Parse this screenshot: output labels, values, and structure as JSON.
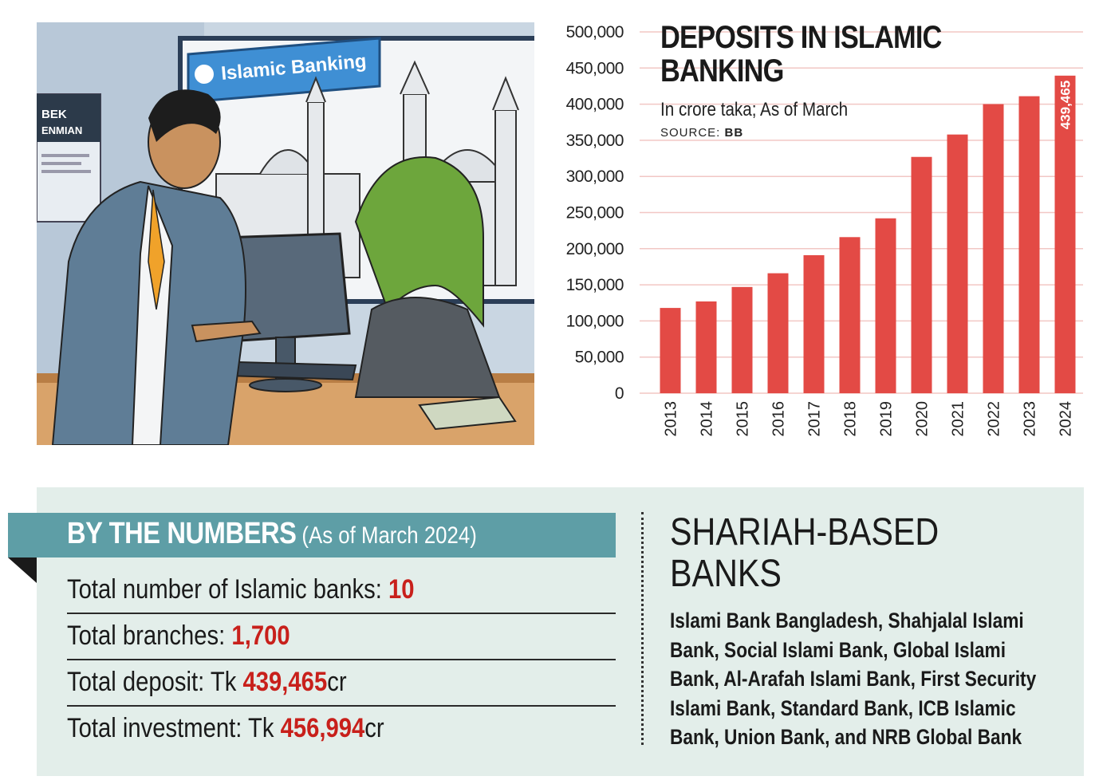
{
  "chart_data": {
    "type": "bar",
    "title": "DEPOSITS IN ISLAMIC BANKING",
    "subtitle": "In crore taka; As of March",
    "source_label": "SOURCE:",
    "source_value": "BB",
    "categories": [
      "2013",
      "2014",
      "2015",
      "2016",
      "2017",
      "2018",
      "2019",
      "2020",
      "2021",
      "2022",
      "2023",
      "2024"
    ],
    "values": [
      118000,
      127000,
      147000,
      166000,
      191000,
      216000,
      242000,
      327000,
      358000,
      400000,
      411000,
      439465
    ],
    "value_labels": {
      "2024": "439,465"
    },
    "yticks": [
      "0",
      "50,000",
      "100,000",
      "150,000",
      "200,000",
      "250,000",
      "300,000",
      "350,000",
      "400,000",
      "450,000",
      "500,000"
    ],
    "ylim": [
      0,
      500000
    ],
    "grid": true,
    "bar_color": "#e34a45",
    "grid_color": "#f2c7c4"
  },
  "by_the_numbers": {
    "title_bold": "BY THE NUMBERS",
    "title_light": "(As of March 2024)",
    "header_color": "#5e9ea6",
    "highlight_color": "#c8201b",
    "stats": [
      {
        "label": "Total number of Islamic banks: ",
        "value": "10",
        "suffix": ""
      },
      {
        "label": "Total branches: ",
        "value": "1,700",
        "suffix": ""
      },
      {
        "label": "Total deposit: Tk ",
        "value": "439,465",
        "suffix": "cr"
      },
      {
        "label": "Total investment: Tk ",
        "value": "456,994",
        "suffix": "cr"
      }
    ]
  },
  "shariah_banks": {
    "heading": "SHARIAH-BASED BANKS",
    "list": "Islami Bank Bangladesh, Shahjalal Islami Bank, Social Islami Bank, Global Islami Bank, Al-Arafah Islami Bank, First Security Islami Bank, Standard Bank, ICB Islamic Bank, Union Bank, and NRB Global Bank"
  },
  "illustration": {
    "sign_text": "Islamic Banking",
    "poster_text_1": "BEK",
    "poster_text_2": "ENMIAN"
  },
  "panel_color": "#e3eeea"
}
